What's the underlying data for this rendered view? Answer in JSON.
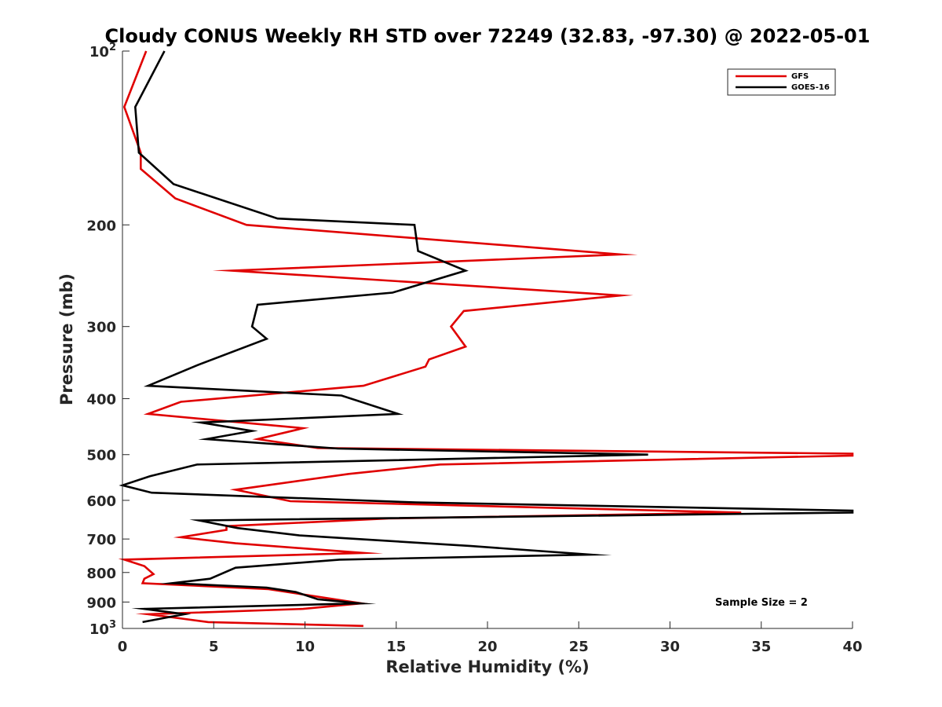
{
  "chart_data": {
    "type": "line",
    "title": "Cloudy CONUS Weekly RH STD over 72249 (32.83, -97.30) @ 2022-05-01",
    "xlabel": "Relative Humidity (%)",
    "ylabel": "Pressure (mb)",
    "xlim": [
      0,
      40
    ],
    "ylim": [
      100,
      1000
    ],
    "y_scale": "log",
    "y_reversed": true,
    "x_ticks": [
      0,
      5,
      10,
      15,
      20,
      25,
      30,
      35,
      40
    ],
    "y_ticks": [
      {
        "value": 100,
        "base": "10",
        "exp": "2"
      },
      {
        "value": 200,
        "label": "200"
      },
      {
        "value": 300,
        "label": "300"
      },
      {
        "value": 400,
        "label": "400"
      },
      {
        "value": 500,
        "label": "500"
      },
      {
        "value": 600,
        "label": "600"
      },
      {
        "value": 700,
        "label": "700"
      },
      {
        "value": 800,
        "label": "800"
      },
      {
        "value": 900,
        "label": "900"
      },
      {
        "value": 1000,
        "base": "10",
        "exp": "3"
      }
    ],
    "legend_position": "top-right",
    "annotation": "Sample Size = 2",
    "series": [
      {
        "name": "GFS",
        "color": "#e00000",
        "points": [
          [
            1.3,
            100
          ],
          [
            0.1,
            125
          ],
          [
            1.0,
            150
          ],
          [
            1.0,
            160
          ],
          [
            2.9,
            180
          ],
          [
            6.8,
            200
          ],
          [
            27.3,
            225
          ],
          [
            6.0,
            240
          ],
          [
            27.3,
            265
          ],
          [
            18.7,
            282
          ],
          [
            18.0,
            300
          ],
          [
            18.8,
            325
          ],
          [
            16.8,
            342
          ],
          [
            16.6,
            352
          ],
          [
            13.2,
            380
          ],
          [
            3.2,
            405
          ],
          [
            1.4,
            425
          ],
          [
            9.9,
            450
          ],
          [
            7.4,
            470
          ],
          [
            10.7,
            487
          ],
          [
            40.0,
            498
          ],
          [
            40.0,
            502
          ],
          [
            17.4,
            520
          ],
          [
            12.4,
            540
          ],
          [
            6.2,
            575
          ],
          [
            9.2,
            602
          ],
          [
            33.9,
            630
          ],
          [
            14.6,
            645
          ],
          [
            5.7,
            665
          ],
          [
            5.7,
            675
          ],
          [
            3.2,
            695
          ],
          [
            6.2,
            712
          ],
          [
            13.2,
            740
          ],
          [
            0.1,
            760
          ],
          [
            1.2,
            780
          ],
          [
            1.7,
            805
          ],
          [
            1.2,
            820
          ],
          [
            1.1,
            835
          ],
          [
            8.0,
            855
          ],
          [
            13.1,
            905
          ],
          [
            9.9,
            925
          ],
          [
            1.4,
            945
          ],
          [
            3.1,
            960
          ],
          [
            4.7,
            975
          ],
          [
            13.2,
            990
          ]
        ]
      },
      {
        "name": "GOES-16",
        "color": "#000000",
        "points": [
          [
            2.3,
            100
          ],
          [
            0.7,
            125
          ],
          [
            0.9,
            150
          ],
          [
            2.8,
            170
          ],
          [
            8.5,
            195
          ],
          [
            16.0,
            200
          ],
          [
            16.2,
            222
          ],
          [
            18.8,
            240
          ],
          [
            14.8,
            262
          ],
          [
            7.4,
            275
          ],
          [
            7.1,
            300
          ],
          [
            7.9,
            315
          ],
          [
            4.1,
            350
          ],
          [
            1.4,
            380
          ],
          [
            12.0,
            395
          ],
          [
            15.1,
            425
          ],
          [
            4.3,
            440
          ],
          [
            7.1,
            455
          ],
          [
            4.6,
            470
          ],
          [
            11.8,
            488
          ],
          [
            28.8,
            500
          ],
          [
            4.1,
            520
          ],
          [
            1.5,
            545
          ],
          [
            0.0,
            565
          ],
          [
            1.6,
            582
          ],
          [
            16.1,
            605
          ],
          [
            40.0,
            625
          ],
          [
            40.0,
            630
          ],
          [
            4.2,
            650
          ],
          [
            6.3,
            670
          ],
          [
            9.7,
            690
          ],
          [
            19.1,
            720
          ],
          [
            25.6,
            745
          ],
          [
            11.9,
            760
          ],
          [
            6.2,
            785
          ],
          [
            4.8,
            820
          ],
          [
            2.7,
            835
          ],
          [
            7.9,
            850
          ],
          [
            9.5,
            865
          ],
          [
            10.7,
            890
          ],
          [
            13.0,
            905
          ],
          [
            1.2,
            925
          ],
          [
            3.4,
            945
          ],
          [
            1.1,
            975
          ]
        ]
      }
    ]
  }
}
